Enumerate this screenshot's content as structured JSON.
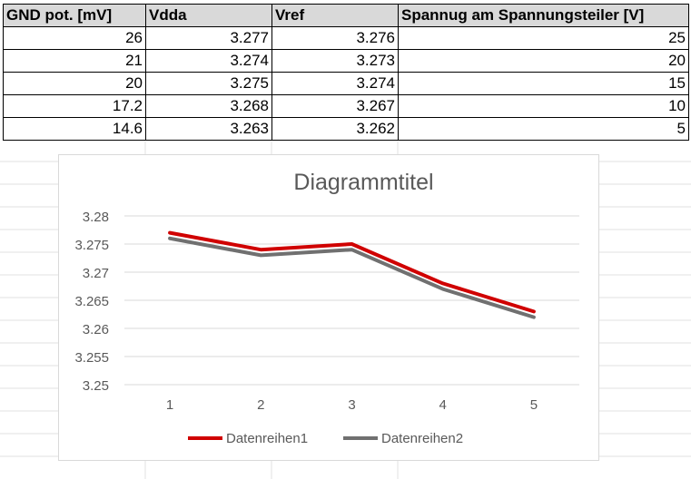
{
  "table": {
    "headers": [
      "GND pot. [mV]",
      "Vdda",
      "Vref",
      "Spannug am Spannungsteiler [V]"
    ],
    "rows": [
      [
        "26",
        "3.277",
        "3.276",
        "25"
      ],
      [
        "21",
        "3.274",
        "3.273",
        "20"
      ],
      [
        "20",
        "3.275",
        "3.274",
        "15"
      ],
      [
        "17.2",
        "3.268",
        "3.267",
        "10"
      ],
      [
        "14.6",
        "3.263",
        "3.262",
        "5"
      ]
    ]
  },
  "chart_data": {
    "type": "line",
    "title": "Diagrammtitel",
    "xlabel": "",
    "ylabel": "",
    "categories": [
      "1",
      "2",
      "3",
      "4",
      "5"
    ],
    "series": [
      {
        "name": "Datenreihen1",
        "values": [
          3.277,
          3.274,
          3.275,
          3.268,
          3.263
        ],
        "color": "#d00000"
      },
      {
        "name": "Datenreihen2",
        "values": [
          3.276,
          3.273,
          3.274,
          3.267,
          3.262
        ],
        "color": "#707070"
      }
    ],
    "yticks": [
      "3.25",
      "3.255",
      "3.26",
      "3.265",
      "3.27",
      "3.275",
      "3.28"
    ],
    "ylim": [
      3.25,
      3.28
    ],
    "grid": true,
    "legend": "bottom",
    "colors": {
      "gridline": "#d9d9d9",
      "title": "#595959",
      "tick_label": "#595959"
    }
  }
}
